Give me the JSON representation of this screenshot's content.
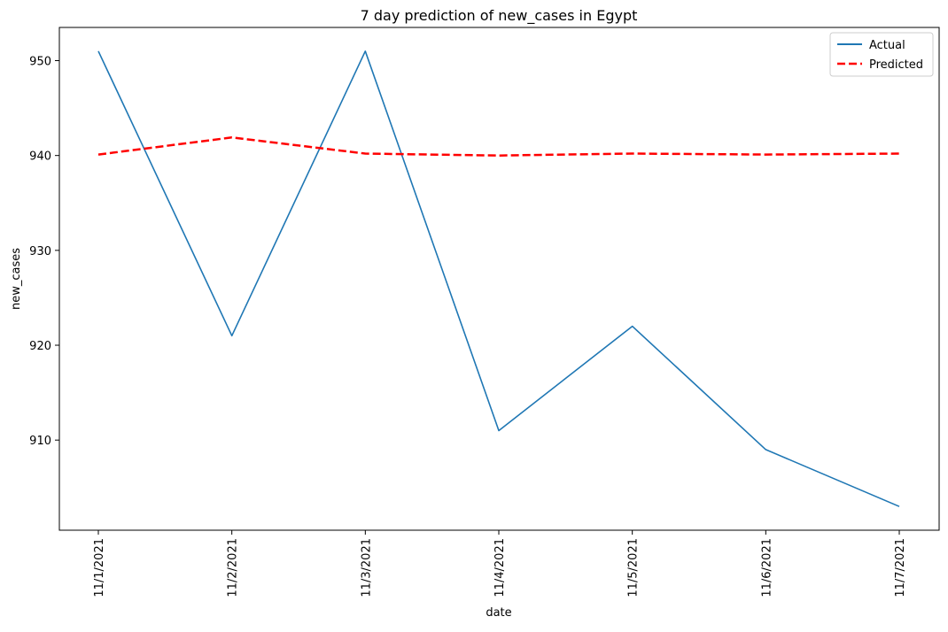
{
  "chart_data": {
    "type": "line",
    "title": "7 day prediction of new_cases in Egypt",
    "xlabel": "date",
    "ylabel": "new_cases",
    "categories": [
      "11/1/2021",
      "11/2/2021",
      "11/3/2021",
      "11/4/2021",
      "11/5/2021",
      "11/6/2021",
      "11/7/2021"
    ],
    "series": [
      {
        "name": "Actual",
        "values": [
          951,
          921,
          951,
          911,
          922,
          909,
          903
        ],
        "color": "#1f77b4",
        "style": "solid"
      },
      {
        "name": "Predicted",
        "values": [
          940.1,
          941.9,
          940.2,
          940.0,
          940.2,
          940.1,
          940.2
        ],
        "color": "#ff0000",
        "style": "dashed"
      }
    ],
    "ylim": [
      900.5,
      953.5
    ],
    "yticks": [
      910,
      920,
      930,
      940,
      950
    ],
    "grid": false,
    "legend_position": "top-right"
  }
}
